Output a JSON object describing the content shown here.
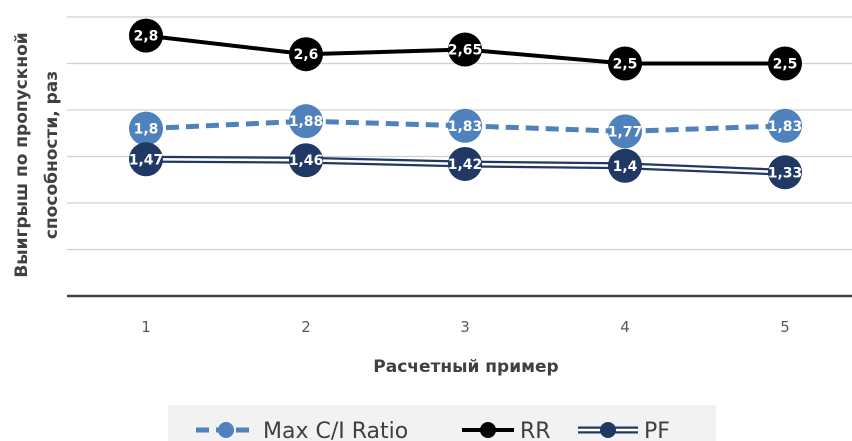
{
  "chart_data": {
    "type": "line",
    "title": "",
    "xlabel": "Расчетный пример",
    "ylabel": "Выигрыш по пропускной способности, раз",
    "ylabel_lines": [
      "Выигрыш по пропускной",
      "способности, раз"
    ],
    "x": [
      1,
      2,
      3,
      4,
      5
    ],
    "ylim": [
      0,
      3
    ],
    "ytick_step": 0.5,
    "grid": true,
    "legend": "bottom",
    "series": [
      {
        "name": "Max C/I Ratio",
        "values": [
          1.8,
          1.88,
          1.83,
          1.77,
          1.83
        ],
        "labels": [
          "1,8",
          "1,88",
          "1,83",
          "1,77",
          "1,83"
        ],
        "color": "#4f81bd",
        "style": "dashed"
      },
      {
        "name": "RR",
        "values": [
          2.8,
          2.6,
          2.65,
          2.5,
          2.5
        ],
        "labels": [
          "2,8",
          "2,6",
          "2,65",
          "2,5",
          "2,5"
        ],
        "color": "#000000",
        "style": "solid"
      },
      {
        "name": "PF",
        "values": [
          1.47,
          1.46,
          1.42,
          1.4,
          1.33
        ],
        "labels": [
          "1,47",
          "1,46",
          "1,42",
          "1,4",
          "1,33"
        ],
        "color": "#1f3864",
        "style": "double"
      }
    ]
  }
}
